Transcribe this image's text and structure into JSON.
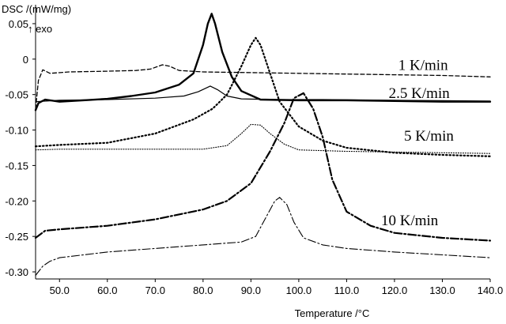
{
  "chart_data": {
    "type": "line",
    "title": "",
    "ylabel": "DSC /(mW/mg)",
    "ylabel_note": "↑ exo",
    "xlabel": "Temperature /°C",
    "xlim": [
      45,
      140
    ],
    "ylim": [
      -0.31,
      0.07
    ],
    "x_ticks": [
      {
        "value": 50,
        "label": "50.0"
      },
      {
        "value": 60,
        "label": "60.0"
      },
      {
        "value": 70,
        "label": "70.0"
      },
      {
        "value": 80,
        "label": "80.0"
      },
      {
        "value": 90,
        "label": "90.0"
      },
      {
        "value": 100,
        "label": "100.0"
      },
      {
        "value": 110,
        "label": "110.0"
      },
      {
        "value": 120,
        "label": "120.0"
      },
      {
        "value": 130,
        "label": "130.0"
      },
      {
        "value": 140,
        "label": "140.0"
      }
    ],
    "y_ticks": [
      {
        "value": 0.05,
        "label": "0.05"
      },
      {
        "value": 0,
        "label": "0"
      },
      {
        "value": -0.05,
        "label": "-0.05"
      },
      {
        "value": -0.1,
        "label": "-0.10"
      },
      {
        "value": -0.15,
        "label": "-0.15"
      },
      {
        "value": -0.2,
        "label": "-0.20"
      },
      {
        "value": -0.25,
        "label": "-0.25"
      },
      {
        "value": -0.3,
        "label": "-0.30"
      }
    ],
    "annotations": [
      {
        "text": "1 K/min",
        "x": 120.8,
        "y": -0.015
      },
      {
        "text": "2.5 K/min",
        "x": 118.8,
        "y": -0.055
      },
      {
        "text": "5 K/min",
        "x": 122.0,
        "y": -0.115
      },
      {
        "text": "10 K/min",
        "x": 117.2,
        "y": -0.234
      }
    ],
    "series": [
      {
        "rate": "1 K/min",
        "kind": "first_heating",
        "style": "dashed",
        "width": 1.3,
        "points": [
          [
            45,
            -0.07
          ],
          [
            45.6,
            -0.03
          ],
          [
            46.5,
            -0.015
          ],
          [
            48,
            -0.02
          ],
          [
            52,
            -0.018
          ],
          [
            60,
            -0.017
          ],
          [
            66,
            -0.016
          ],
          [
            69,
            -0.014
          ],
          [
            71.5,
            -0.008
          ],
          [
            73,
            -0.01
          ],
          [
            75,
            -0.016
          ],
          [
            80,
            -0.018
          ],
          [
            90,
            -0.019
          ],
          [
            100,
            -0.02
          ],
          [
            110,
            -0.021
          ],
          [
            120,
            -0.022
          ],
          [
            130,
            -0.023
          ],
          [
            140,
            -0.025
          ]
        ]
      },
      {
        "rate": "1 K/min",
        "kind": "second_heating",
        "style": "solid",
        "width": 2.4,
        "points": [
          [
            45,
            -0.072
          ],
          [
            45.6,
            -0.062
          ],
          [
            47,
            -0.057
          ],
          [
            50,
            -0.06
          ],
          [
            55,
            -0.058
          ],
          [
            60,
            -0.056
          ],
          [
            65,
            -0.052
          ],
          [
            70,
            -0.047
          ],
          [
            75,
            -0.036
          ],
          [
            78,
            -0.02
          ],
          [
            80,
            0.02
          ],
          [
            81,
            0.05
          ],
          [
            81.8,
            0.064
          ],
          [
            82.5,
            0.05
          ],
          [
            84,
            0.01
          ],
          [
            86,
            -0.025
          ],
          [
            88,
            -0.045
          ],
          [
            92,
            -0.057
          ],
          [
            100,
            -0.058
          ],
          [
            110,
            -0.058
          ],
          [
            120,
            -0.059
          ],
          [
            130,
            -0.06
          ],
          [
            140,
            -0.06
          ]
        ]
      },
      {
        "rate": "2.5 K/min",
        "kind": "thin_solid",
        "style": "solid",
        "width": 1.2,
        "points": [
          [
            45,
            -0.06
          ],
          [
            50,
            -0.058
          ],
          [
            60,
            -0.057
          ],
          [
            70,
            -0.055
          ],
          [
            76,
            -0.052
          ],
          [
            79,
            -0.046
          ],
          [
            81.5,
            -0.038
          ],
          [
            83,
            -0.043
          ],
          [
            85,
            -0.052
          ],
          [
            88,
            -0.056
          ],
          [
            95,
            -0.057
          ],
          [
            105,
            -0.057
          ],
          [
            120,
            -0.058
          ],
          [
            140,
            -0.059
          ]
        ]
      },
      {
        "rate": "5 K/min",
        "kind": "dotted_bold",
        "style": "dotted",
        "width": 2.2,
        "points": [
          [
            45,
            -0.123
          ],
          [
            50,
            -0.121
          ],
          [
            60,
            -0.118
          ],
          [
            70,
            -0.105
          ],
          [
            78,
            -0.085
          ],
          [
            82,
            -0.07
          ],
          [
            85,
            -0.05
          ],
          [
            88,
            -0.01
          ],
          [
            90,
            0.02
          ],
          [
            91,
            0.03
          ],
          [
            92,
            0.02
          ],
          [
            94,
            -0.02
          ],
          [
            96,
            -0.06
          ],
          [
            100,
            -0.095
          ],
          [
            105,
            -0.115
          ],
          [
            110,
            -0.125
          ],
          [
            120,
            -0.132
          ],
          [
            130,
            -0.135
          ],
          [
            140,
            -0.137
          ]
        ]
      },
      {
        "rate": "5 K/min",
        "kind": "dotted_thin",
        "style": "dotted_fine",
        "width": 1.1,
        "points": [
          [
            45,
            -0.128
          ],
          [
            50,
            -0.127
          ],
          [
            60,
            -0.127
          ],
          [
            70,
            -0.127
          ],
          [
            80,
            -0.127
          ],
          [
            85,
            -0.122
          ],
          [
            88,
            -0.105
          ],
          [
            90,
            -0.092
          ],
          [
            92,
            -0.093
          ],
          [
            94,
            -0.105
          ],
          [
            97,
            -0.12
          ],
          [
            100,
            -0.128
          ],
          [
            110,
            -0.13
          ],
          [
            120,
            -0.131
          ],
          [
            130,
            -0.132
          ],
          [
            140,
            -0.133
          ]
        ]
      },
      {
        "rate": "10 K/min",
        "kind": "dashdot_bold",
        "style": "dashdot",
        "width": 2.2,
        "points": [
          [
            45,
            -0.252
          ],
          [
            47,
            -0.242
          ],
          [
            50,
            -0.24
          ],
          [
            60,
            -0.235
          ],
          [
            70,
            -0.226
          ],
          [
            80,
            -0.212
          ],
          [
            85,
            -0.2
          ],
          [
            90,
            -0.175
          ],
          [
            94,
            -0.13
          ],
          [
            97,
            -0.09
          ],
          [
            99,
            -0.055
          ],
          [
            101,
            -0.048
          ],
          [
            103,
            -0.07
          ],
          [
            105,
            -0.11
          ],
          [
            107,
            -0.17
          ],
          [
            110,
            -0.215
          ],
          [
            115,
            -0.235
          ],
          [
            120,
            -0.245
          ],
          [
            130,
            -0.252
          ],
          [
            140,
            -0.256
          ]
        ]
      },
      {
        "rate": "10 K/min",
        "kind": "dashdot_thin",
        "style": "dashdot_thin",
        "width": 1.1,
        "points": [
          [
            45,
            -0.305
          ],
          [
            46.5,
            -0.292
          ],
          [
            48,
            -0.285
          ],
          [
            50,
            -0.28
          ],
          [
            60,
            -0.272
          ],
          [
            70,
            -0.267
          ],
          [
            80,
            -0.262
          ],
          [
            88,
            -0.258
          ],
          [
            91,
            -0.25
          ],
          [
            93,
            -0.225
          ],
          [
            95,
            -0.2
          ],
          [
            96,
            -0.195
          ],
          [
            97.5,
            -0.205
          ],
          [
            99,
            -0.23
          ],
          [
            101,
            -0.252
          ],
          [
            105,
            -0.262
          ],
          [
            110,
            -0.267
          ],
          [
            120,
            -0.272
          ],
          [
            130,
            -0.276
          ],
          [
            140,
            -0.28
          ]
        ]
      }
    ]
  }
}
